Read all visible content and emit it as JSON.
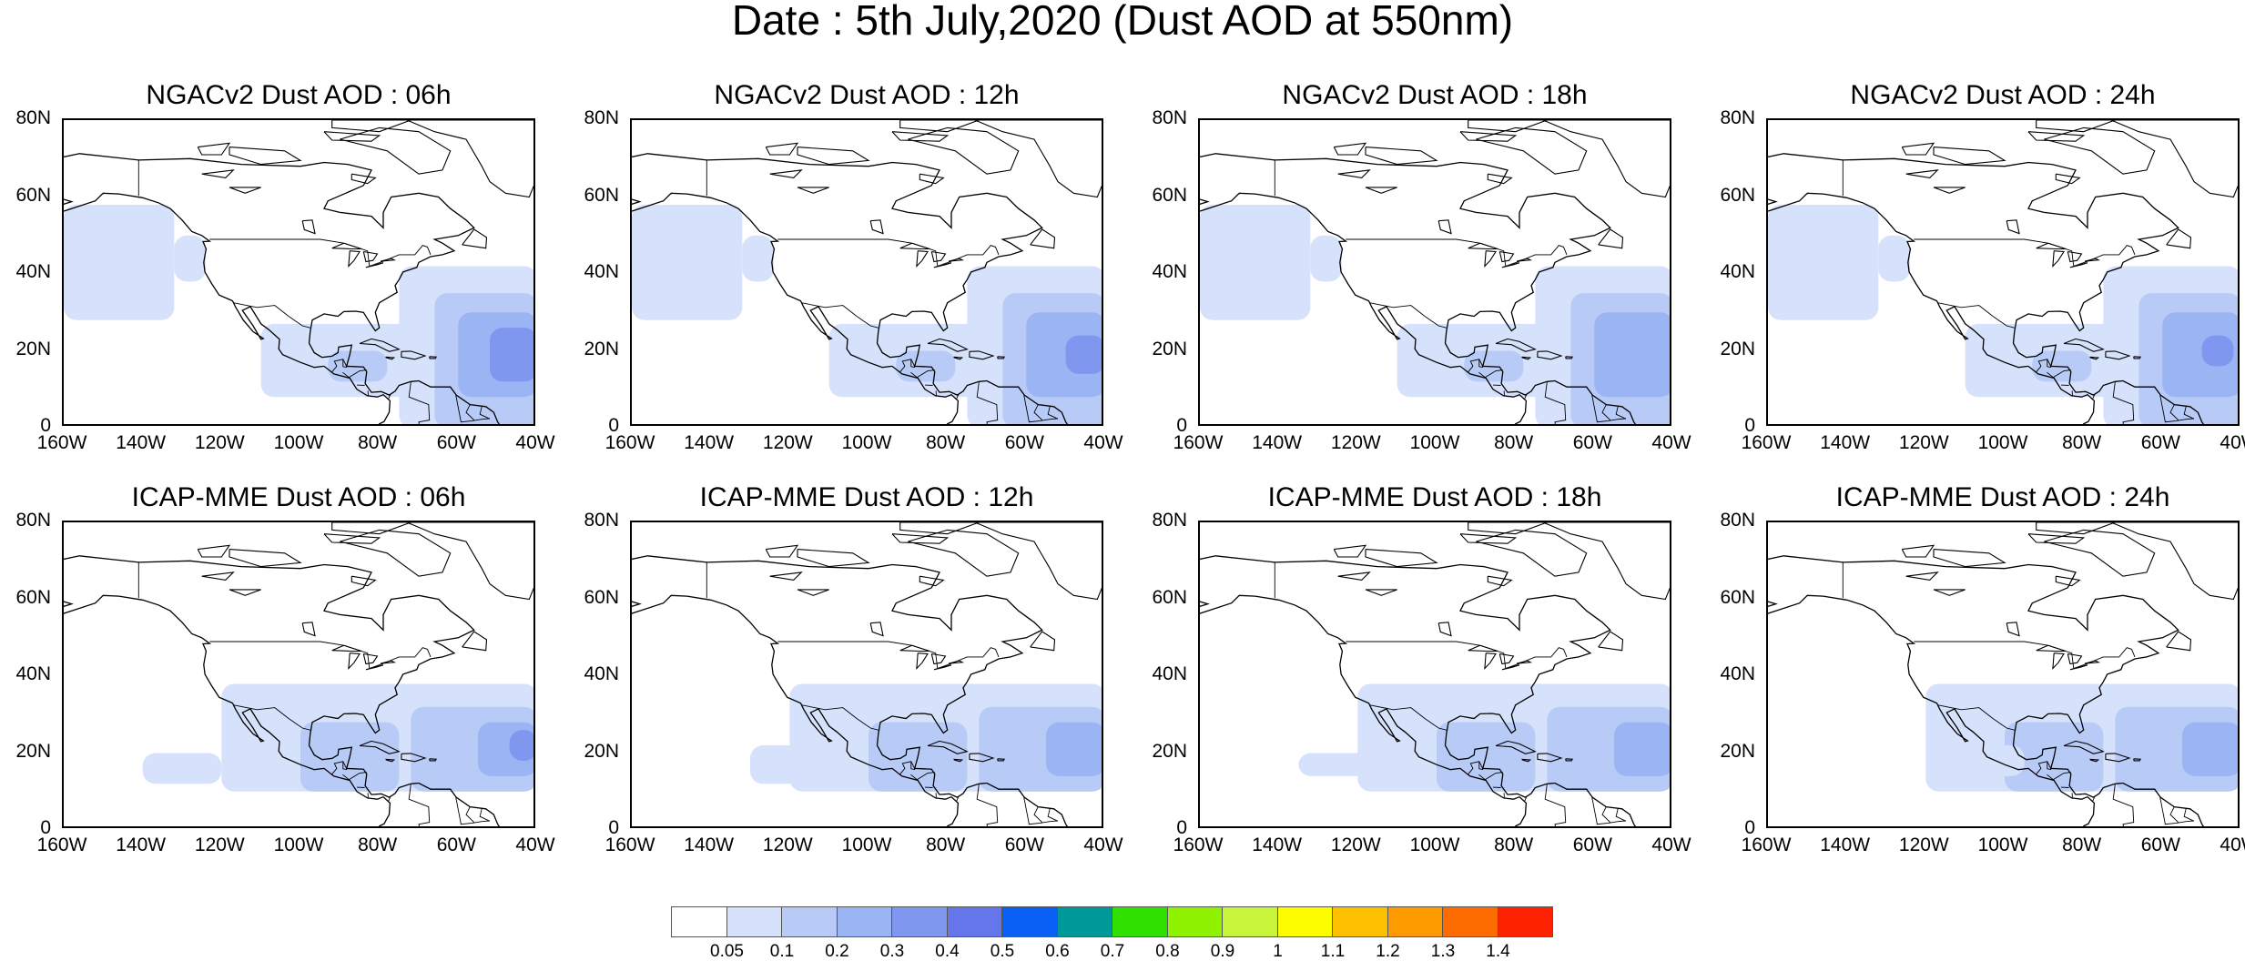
{
  "figure": {
    "title": "Date : 5th July,2020 (Dust AOD at 550nm)"
  },
  "axes": {
    "lat_labels": [
      "80N",
      "60N",
      "40N",
      "20N",
      "0"
    ],
    "lon_labels": [
      "160W",
      "140W",
      "120W",
      "100W",
      "80W",
      "60W",
      "40W"
    ]
  },
  "panels": [
    {
      "title": "NGACv2 Dust AOD : 06h",
      "model": "NGACv2",
      "hour": "06h"
    },
    {
      "title": "NGACv2 Dust AOD : 12h",
      "model": "NGACv2",
      "hour": "12h"
    },
    {
      "title": "NGACv2 Dust AOD : 18h",
      "model": "NGACv2",
      "hour": "18h"
    },
    {
      "title": "NGACv2 Dust AOD : 24h",
      "model": "NGACv2",
      "hour": "24h"
    },
    {
      "title": "ICAP-MME Dust AOD : 06h",
      "model": "ICAP-MME",
      "hour": "06h"
    },
    {
      "title": "ICAP-MME Dust AOD : 12h",
      "model": "ICAP-MME",
      "hour": "12h"
    },
    {
      "title": "ICAP-MME Dust AOD : 18h",
      "model": "ICAP-MME",
      "hour": "18h"
    },
    {
      "title": "ICAP-MME Dust AOD : 24h",
      "model": "ICAP-MME",
      "hour": "24h"
    }
  ],
  "colorbar": {
    "labels": [
      "0.05",
      "0.1",
      "0.2",
      "0.3",
      "0.4",
      "0.5",
      "0.6",
      "0.7",
      "0.8",
      "0.9",
      "1",
      "1.1",
      "1.2",
      "1.3",
      "1.4"
    ],
    "colors": [
      "#ffffff",
      "#d6e2fb",
      "#b8cbf7",
      "#9bb4f4",
      "#7f97ee",
      "#6476ea",
      "#0a5ff5",
      "#00999a",
      "#30e000",
      "#8ef200",
      "#c8f43c",
      "#fdfd00",
      "#fdc000",
      "#fd9a00",
      "#fd6c00",
      "#fd2200"
    ]
  },
  "map_extent": {
    "lon_min": -160,
    "lon_max": -40,
    "lat_min": 0,
    "lat_max": 80
  }
}
